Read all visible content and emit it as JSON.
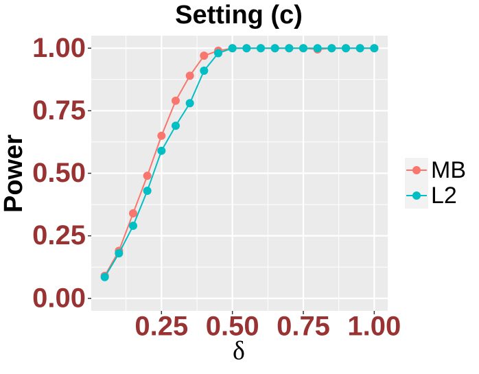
{
  "chart_data": {
    "type": "line",
    "title": "Setting (c)",
    "x_label": "δ",
    "y_label": "Power",
    "x": [
      0.05,
      0.1,
      0.15,
      0.2,
      0.25,
      0.3,
      0.35,
      0.4,
      0.45,
      0.5,
      0.55,
      0.6,
      0.65,
      0.7,
      0.75,
      0.8,
      0.85,
      0.9,
      0.95,
      1.0
    ],
    "series": [
      {
        "name": "MB",
        "color": "#F8766D",
        "values": [
          0.09,
          0.19,
          0.34,
          0.49,
          0.65,
          0.79,
          0.89,
          0.97,
          0.99,
          1,
          1,
          1,
          1,
          1,
          1,
          0.995,
          1,
          1,
          1,
          1
        ]
      },
      {
        "name": "L2",
        "color": "#00BFC4",
        "values": [
          0.085,
          0.18,
          0.29,
          0.43,
          0.59,
          0.69,
          0.78,
          0.91,
          0.98,
          1,
          1,
          1,
          1,
          1,
          1,
          1,
          1,
          1,
          1,
          1
        ]
      }
    ],
    "xlim": [
      0.0025,
      1.0475
    ],
    "xticks": [
      0.25,
      {
        "value": 0.5,
        "label": "0.50"
      },
      0.75,
      {
        "value": 1,
        "label": "1.00"
      }
    ],
    "ylim": [
      -0.05,
      1.05
    ],
    "yticks": [
      {
        "value": 0,
        "label": "0.00"
      },
      0.25,
      {
        "value": 0.5,
        "label": "0.50"
      },
      0.75,
      {
        "value": 1,
        "label": "1.00"
      }
    ],
    "grid": true
  }
}
